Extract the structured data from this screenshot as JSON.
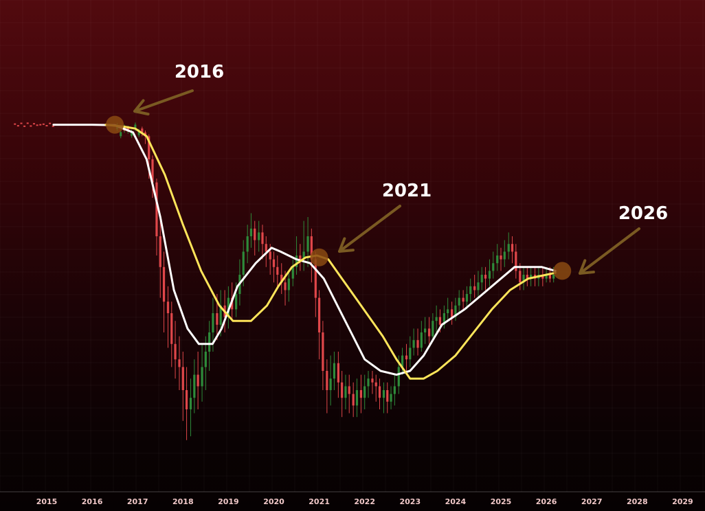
{
  "chart_data": {
    "type": "line",
    "title": "",
    "xlabel": "",
    "ylabel": "",
    "x_ticks": [
      "2015",
      "2016",
      "2017",
      "2018",
      "2019",
      "2020",
      "2021",
      "2022",
      "2023",
      "2024",
      "2025",
      "2026",
      "2027",
      "2028",
      "2029"
    ],
    "grid": true,
    "series": [
      {
        "role": "fast-moving-average",
        "color": "#ffffff",
        "points": [
          [
            2015.15,
            0.89
          ],
          [
            2015.6,
            0.89
          ],
          [
            2016.0,
            0.89
          ],
          [
            2016.5,
            0.889
          ],
          [
            2016.9,
            0.87
          ],
          [
            2017.2,
            0.8
          ],
          [
            2017.5,
            0.65
          ],
          [
            2017.8,
            0.46
          ],
          [
            2018.1,
            0.36
          ],
          [
            2018.35,
            0.32
          ],
          [
            2018.65,
            0.32
          ],
          [
            2018.85,
            0.36
          ],
          [
            2019.2,
            0.47
          ],
          [
            2019.6,
            0.53
          ],
          [
            2019.95,
            0.57
          ],
          [
            2020.15,
            0.56
          ],
          [
            2020.5,
            0.54
          ],
          [
            2020.8,
            0.53
          ],
          [
            2021.1,
            0.49
          ],
          [
            2021.4,
            0.42
          ],
          [
            2021.7,
            0.35
          ],
          [
            2022.0,
            0.28
          ],
          [
            2022.35,
            0.25
          ],
          [
            2022.7,
            0.24
          ],
          [
            2023.0,
            0.25
          ],
          [
            2023.3,
            0.29
          ],
          [
            2023.7,
            0.37
          ],
          [
            2024.2,
            0.41
          ],
          [
            2024.6,
            0.45
          ],
          [
            2024.9,
            0.48
          ],
          [
            2025.3,
            0.52
          ],
          [
            2025.6,
            0.52
          ],
          [
            2025.9,
            0.52
          ],
          [
            2026.2,
            0.51
          ]
        ]
      },
      {
        "role": "slow-moving-average",
        "color": "#ffe55a",
        "points": [
          [
            2016.3,
            0.89
          ],
          [
            2016.7,
            0.885
          ],
          [
            2016.95,
            0.88
          ],
          [
            2017.2,
            0.86
          ],
          [
            2017.6,
            0.76
          ],
          [
            2018.0,
            0.63
          ],
          [
            2018.4,
            0.51
          ],
          [
            2018.8,
            0.42
          ],
          [
            2019.1,
            0.38
          ],
          [
            2019.5,
            0.38
          ],
          [
            2019.85,
            0.42
          ],
          [
            2020.1,
            0.47
          ],
          [
            2020.4,
            0.52
          ],
          [
            2020.7,
            0.545
          ],
          [
            2020.95,
            0.55
          ],
          [
            2021.2,
            0.54
          ],
          [
            2021.5,
            0.49
          ],
          [
            2021.8,
            0.44
          ],
          [
            2022.1,
            0.39
          ],
          [
            2022.4,
            0.34
          ],
          [
            2022.7,
            0.28
          ],
          [
            2023.0,
            0.23
          ],
          [
            2023.3,
            0.23
          ],
          [
            2023.6,
            0.25
          ],
          [
            2024.0,
            0.29
          ],
          [
            2024.4,
            0.35
          ],
          [
            2024.8,
            0.41
          ],
          [
            2025.2,
            0.46
          ],
          [
            2025.6,
            0.49
          ],
          [
            2026.0,
            0.5
          ],
          [
            2026.2,
            0.505
          ]
        ]
      }
    ],
    "candles": [
      [
        2017.1,
        0.88,
        0.87,
        0.885,
        0.86
      ],
      [
        2017.17,
        0.87,
        0.86,
        0.875,
        0.84
      ],
      [
        2017.25,
        0.86,
        0.8,
        0.865,
        0.75
      ],
      [
        2017.33,
        0.8,
        0.74,
        0.81,
        0.7
      ],
      [
        2017.42,
        0.74,
        0.6,
        0.75,
        0.55
      ],
      [
        2017.5,
        0.6,
        0.52,
        0.64,
        0.44
      ],
      [
        2017.58,
        0.52,
        0.43,
        0.56,
        0.35
      ],
      [
        2017.67,
        0.43,
        0.4,
        0.47,
        0.31
      ],
      [
        2017.75,
        0.4,
        0.32,
        0.43,
        0.26
      ],
      [
        2017.83,
        0.32,
        0.28,
        0.38,
        0.23
      ],
      [
        2017.92,
        0.28,
        0.26,
        0.34,
        0.2
      ],
      [
        2018.0,
        0.26,
        0.2,
        0.3,
        0.12
      ],
      [
        2018.08,
        0.2,
        0.15,
        0.26,
        0.07
      ],
      [
        2018.17,
        0.15,
        0.18,
        0.23,
        0.08
      ],
      [
        2018.25,
        0.18,
        0.24,
        0.28,
        0.14
      ],
      [
        2018.33,
        0.24,
        0.21,
        0.3,
        0.15
      ],
      [
        2018.42,
        0.21,
        0.26,
        0.32,
        0.17
      ],
      [
        2018.5,
        0.26,
        0.3,
        0.34,
        0.2
      ],
      [
        2018.58,
        0.3,
        0.35,
        0.38,
        0.25
      ],
      [
        2018.66,
        0.35,
        0.4,
        0.44,
        0.3
      ],
      [
        2018.75,
        0.4,
        0.37,
        0.45,
        0.33
      ],
      [
        2018.83,
        0.37,
        0.42,
        0.46,
        0.34
      ],
      [
        2018.92,
        0.42,
        0.39,
        0.46,
        0.35
      ],
      [
        2019.0,
        0.39,
        0.44,
        0.47,
        0.36
      ],
      [
        2019.08,
        0.44,
        0.41,
        0.48,
        0.38
      ],
      [
        2019.17,
        0.41,
        0.45,
        0.48,
        0.39
      ],
      [
        2019.25,
        0.45,
        0.5,
        0.54,
        0.42
      ],
      [
        2019.33,
        0.5,
        0.56,
        0.59,
        0.47
      ],
      [
        2019.42,
        0.56,
        0.6,
        0.63,
        0.53
      ],
      [
        2019.5,
        0.6,
        0.62,
        0.66,
        0.57
      ],
      [
        2019.58,
        0.62,
        0.59,
        0.64,
        0.55
      ],
      [
        2019.67,
        0.59,
        0.61,
        0.64,
        0.56
      ],
      [
        2019.75,
        0.61,
        0.58,
        0.63,
        0.54
      ],
      [
        2019.83,
        0.58,
        0.56,
        0.6,
        0.52
      ],
      [
        2019.92,
        0.56,
        0.54,
        0.58,
        0.5
      ],
      [
        2020.0,
        0.54,
        0.52,
        0.56,
        0.48
      ],
      [
        2020.08,
        0.52,
        0.5,
        0.55,
        0.47
      ],
      [
        2020.17,
        0.5,
        0.48,
        0.53,
        0.45
      ],
      [
        2020.25,
        0.48,
        0.46,
        0.51,
        0.42
      ],
      [
        2020.33,
        0.46,
        0.49,
        0.51,
        0.43
      ],
      [
        2020.42,
        0.49,
        0.52,
        0.54,
        0.47
      ],
      [
        2020.5,
        0.52,
        0.55,
        0.6,
        0.5
      ],
      [
        2020.58,
        0.55,
        0.54,
        0.58,
        0.51
      ],
      [
        2020.66,
        0.54,
        0.56,
        0.64,
        0.51
      ],
      [
        2020.75,
        0.56,
        0.6,
        0.65,
        0.52
      ],
      [
        2020.83,
        0.6,
        0.54,
        0.62,
        0.48
      ],
      [
        2020.92,
        0.54,
        0.44,
        0.56,
        0.39
      ],
      [
        2021.0,
        0.44,
        0.35,
        0.46,
        0.28
      ],
      [
        2021.08,
        0.35,
        0.25,
        0.38,
        0.2
      ],
      [
        2021.17,
        0.25,
        0.2,
        0.28,
        0.14
      ],
      [
        2021.25,
        0.2,
        0.23,
        0.29,
        0.16
      ],
      [
        2021.33,
        0.23,
        0.27,
        0.3,
        0.2
      ],
      [
        2021.42,
        0.27,
        0.22,
        0.3,
        0.18
      ],
      [
        2021.5,
        0.22,
        0.18,
        0.25,
        0.13
      ],
      [
        2021.58,
        0.18,
        0.21,
        0.24,
        0.15
      ],
      [
        2021.66,
        0.21,
        0.19,
        0.24,
        0.14
      ],
      [
        2021.75,
        0.19,
        0.16,
        0.22,
        0.13
      ],
      [
        2021.83,
        0.16,
        0.2,
        0.23,
        0.13
      ],
      [
        2021.92,
        0.2,
        0.18,
        0.24,
        0.14
      ],
      [
        2022.0,
        0.18,
        0.21,
        0.24,
        0.15
      ],
      [
        2022.08,
        0.21,
        0.23,
        0.25,
        0.18
      ],
      [
        2022.17,
        0.23,
        0.22,
        0.25,
        0.19
      ],
      [
        2022.25,
        0.22,
        0.21,
        0.24,
        0.17
      ],
      [
        2022.33,
        0.21,
        0.18,
        0.23,
        0.15
      ],
      [
        2022.42,
        0.18,
        0.2,
        0.22,
        0.14
      ],
      [
        2022.5,
        0.2,
        0.17,
        0.22,
        0.14
      ],
      [
        2022.58,
        0.17,
        0.19,
        0.21,
        0.15
      ],
      [
        2022.66,
        0.19,
        0.21,
        0.24,
        0.16
      ],
      [
        2022.75,
        0.21,
        0.26,
        0.29,
        0.19
      ],
      [
        2022.83,
        0.26,
        0.29,
        0.31,
        0.24
      ],
      [
        2022.92,
        0.29,
        0.28,
        0.32,
        0.25
      ],
      [
        2023.0,
        0.28,
        0.31,
        0.34,
        0.26
      ],
      [
        2023.08,
        0.31,
        0.33,
        0.36,
        0.29
      ],
      [
        2023.17,
        0.33,
        0.31,
        0.36,
        0.29
      ],
      [
        2023.25,
        0.31,
        0.35,
        0.38,
        0.3
      ],
      [
        2023.33,
        0.35,
        0.36,
        0.39,
        0.32
      ],
      [
        2023.42,
        0.36,
        0.34,
        0.39,
        0.32
      ],
      [
        2023.5,
        0.34,
        0.38,
        0.4,
        0.33
      ],
      [
        2023.58,
        0.38,
        0.39,
        0.42,
        0.35
      ],
      [
        2023.66,
        0.39,
        0.37,
        0.41,
        0.35
      ],
      [
        2023.75,
        0.37,
        0.4,
        0.42,
        0.36
      ],
      [
        2023.83,
        0.4,
        0.41,
        0.44,
        0.38
      ],
      [
        2023.92,
        0.41,
        0.39,
        0.43,
        0.37
      ],
      [
        2024.0,
        0.39,
        0.42,
        0.44,
        0.38
      ],
      [
        2024.08,
        0.42,
        0.44,
        0.46,
        0.4
      ],
      [
        2024.17,
        0.44,
        0.43,
        0.46,
        0.41
      ],
      [
        2024.25,
        0.43,
        0.45,
        0.47,
        0.41
      ],
      [
        2024.33,
        0.45,
        0.47,
        0.49,
        0.43
      ],
      [
        2024.42,
        0.47,
        0.46,
        0.5,
        0.44
      ],
      [
        2024.5,
        0.46,
        0.48,
        0.51,
        0.44
      ],
      [
        2024.58,
        0.48,
        0.5,
        0.52,
        0.46
      ],
      [
        2024.66,
        0.5,
        0.49,
        0.52,
        0.46
      ],
      [
        2024.75,
        0.49,
        0.51,
        0.54,
        0.47
      ],
      [
        2024.83,
        0.51,
        0.53,
        0.56,
        0.49
      ],
      [
        2024.92,
        0.53,
        0.55,
        0.58,
        0.51
      ],
      [
        2025.0,
        0.55,
        0.54,
        0.57,
        0.51
      ],
      [
        2025.08,
        0.54,
        0.56,
        0.59,
        0.52
      ],
      [
        2025.17,
        0.56,
        0.58,
        0.61,
        0.54
      ],
      [
        2025.25,
        0.58,
        0.56,
        0.6,
        0.53
      ],
      [
        2025.33,
        0.56,
        0.51,
        0.58,
        0.49
      ],
      [
        2025.42,
        0.51,
        0.48,
        0.53,
        0.46
      ],
      [
        2025.5,
        0.48,
        0.5,
        0.52,
        0.46
      ],
      [
        2025.58,
        0.5,
        0.49,
        0.52,
        0.47
      ],
      [
        2025.66,
        0.49,
        0.5,
        0.52,
        0.47
      ],
      [
        2025.75,
        0.5,
        0.49,
        0.52,
        0.47
      ],
      [
        2025.83,
        0.49,
        0.5,
        0.52,
        0.47
      ],
      [
        2025.92,
        0.5,
        0.49,
        0.52,
        0.47
      ],
      [
        2026.0,
        0.49,
        0.5,
        0.52,
        0.48
      ],
      [
        2026.08,
        0.5,
        0.49,
        0.52,
        0.48
      ],
      [
        2026.16,
        0.49,
        0.5,
        0.52,
        0.48
      ]
    ],
    "annotations": [
      {
        "label": "2016",
        "target": [
          2016.5,
          0.89
        ]
      },
      {
        "label": "2021",
        "target": [
          2021.0,
          0.545
        ]
      },
      {
        "label": "2026",
        "target": [
          2026.35,
          0.51
        ]
      }
    ],
    "colors": {
      "fast_line": "#ffffff",
      "slow_line": "#ffe55a",
      "candle_up": "#2e8b3a",
      "candle_down": "#e0474a",
      "arrow": "#7a5a22",
      "marker": "#8a4a12",
      "tick_label": "#f0c8c8",
      "annotation_text": "#ffffff"
    }
  }
}
